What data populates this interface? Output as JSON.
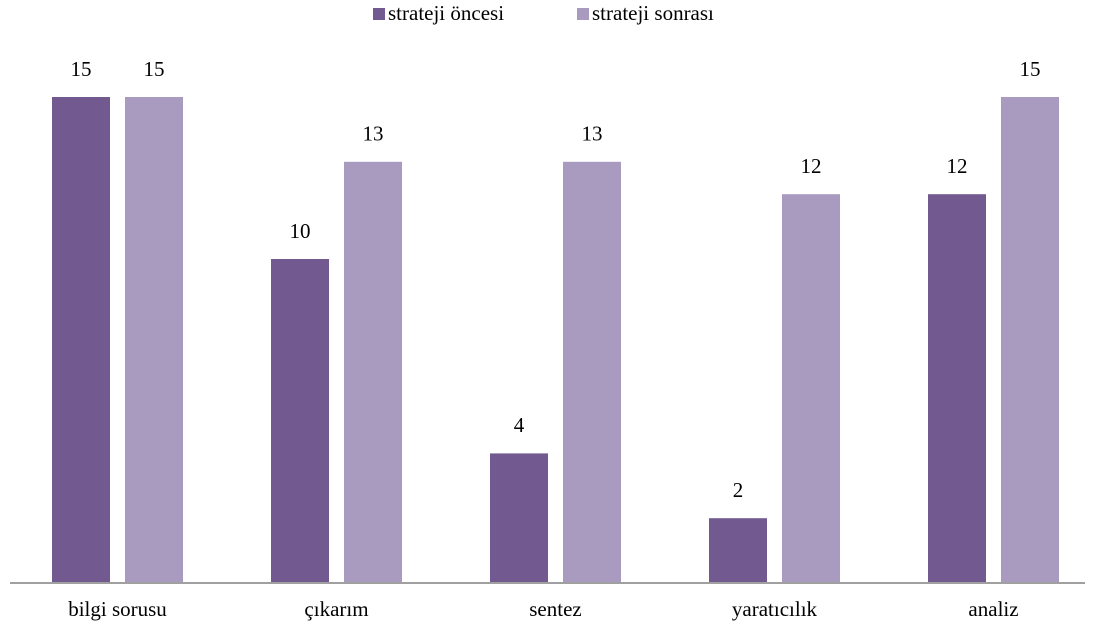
{
  "chart_data": {
    "type": "bar",
    "categories": [
      "bilgi sorusu",
      "çıkarım",
      "sentez",
      "yaratıcılık",
      "analiz"
    ],
    "series": [
      {
        "name": "strateji öncesi",
        "color": "#725990",
        "values": [
          15,
          10,
          4,
          2,
          12
        ]
      },
      {
        "name": "strateji sonrası",
        "color": "#a99bbf",
        "values": [
          15,
          13,
          13,
          12,
          15
        ]
      }
    ]
  }
}
